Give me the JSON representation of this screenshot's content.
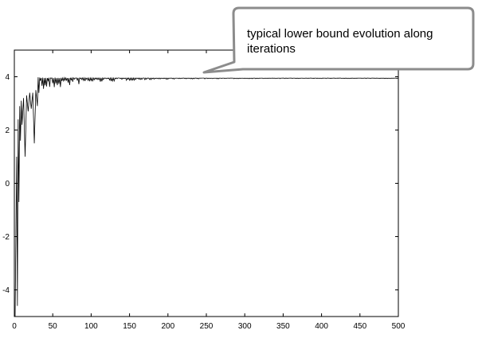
{
  "chart_data": {
    "type": "line",
    "title": "",
    "xlabel": "",
    "ylabel": "",
    "xlim": [
      0,
      500
    ],
    "ylim": [
      -5,
      5
    ],
    "xticks": [
      0,
      50,
      100,
      150,
      200,
      250,
      300,
      350,
      400,
      450,
      500
    ],
    "yticks": [
      -4,
      -2,
      0,
      2,
      4
    ],
    "grid": false,
    "legend": "none",
    "series": [
      {
        "color": "#000000",
        "x": [
          1,
          2,
          3,
          4,
          5,
          6,
          7,
          8,
          9,
          10,
          12,
          14,
          16,
          18,
          20,
          22,
          24,
          26,
          28,
          30,
          33,
          36,
          40,
          45,
          50,
          55,
          60,
          65,
          70,
          75,
          80,
          90,
          100,
          110,
          120,
          140,
          160,
          180,
          200,
          225,
          250,
          300,
          350,
          400,
          450,
          500
        ],
        "y": [
          -5.0,
          -2.0,
          1.0,
          -4.6,
          2.4,
          -0.7,
          2.9,
          1.6,
          3.1,
          2.2,
          3.2,
          1.0,
          3.3,
          2.7,
          3.4,
          2.8,
          3.4,
          1.5,
          3.5,
          2.9,
          3.6,
          3.0,
          3.6,
          2.4,
          3.7,
          3.0,
          3.75,
          3.1,
          3.8,
          3.2,
          3.8,
          3.35,
          3.85,
          3.5,
          3.88,
          3.75,
          3.9,
          3.85,
          3.93,
          3.9,
          3.95,
          3.97,
          3.98,
          3.99,
          4.0,
          4.0
        ]
      }
    ],
    "annotation": {
      "text": "typical lower bound evolution along iterations",
      "lines": [
        "typical lower bound evolution along",
        "iterations"
      ]
    }
  }
}
